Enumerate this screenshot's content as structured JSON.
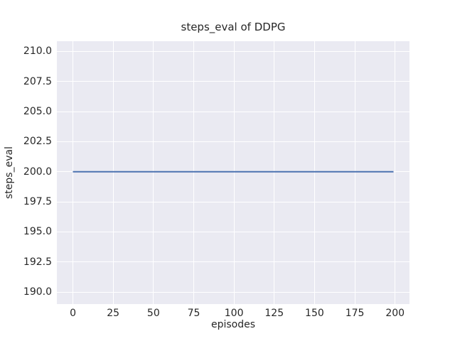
{
  "figure": {
    "background": "#ffffff",
    "plot_background": "#eaeaf2",
    "grid_color": "#ffffff",
    "text_color": "#262626"
  },
  "chart_data": {
    "type": "line",
    "title": "steps_eval of DDPG",
    "xlabel": "episodes",
    "ylabel": "steps_eval",
    "xlim": [
      -9.95,
      208.95
    ],
    "ylim": [
      189.0,
      210.85
    ],
    "xticks": [
      0,
      25,
      50,
      75,
      100,
      125,
      150,
      175,
      200
    ],
    "xtick_labels": [
      "0",
      "25",
      "50",
      "75",
      "100",
      "125",
      "150",
      "175",
      "200"
    ],
    "yticks": [
      190.0,
      192.5,
      195.0,
      197.5,
      200.0,
      202.5,
      205.0,
      207.5,
      210.0
    ],
    "ytick_labels": [
      "190.0",
      "192.5",
      "195.0",
      "197.5",
      "200.0",
      "202.5",
      "205.0",
      "207.5",
      "210.0"
    ],
    "grid": true,
    "legend": false,
    "series": [
      {
        "name": "DDPG",
        "color": "#4c72b0",
        "line_width": 2,
        "points": [
          [
            0,
            200
          ],
          [
            199,
            200
          ]
        ]
      }
    ]
  }
}
